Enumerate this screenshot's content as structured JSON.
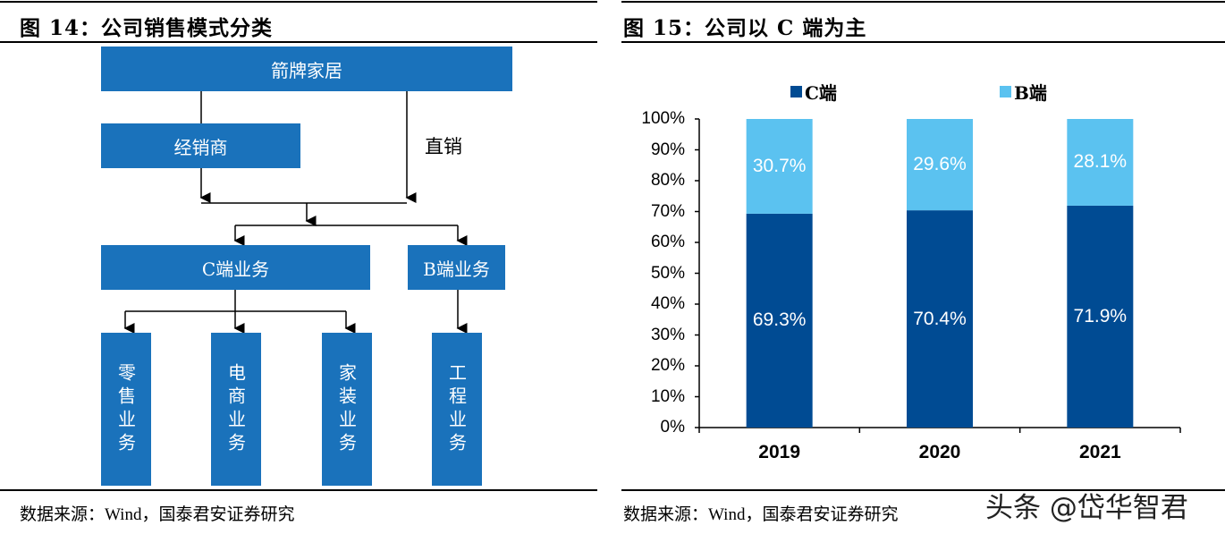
{
  "left": {
    "title": "图 14：公司销售模式分类",
    "source": "数据来源：Wind，国泰君安证券研究",
    "diagram": {
      "root": "箭牌家居",
      "dealer": "经销商",
      "direct": "直销",
      "c_business": "C端业务",
      "b_business": "B端业务",
      "leaves": [
        "零售业务",
        "电商业务",
        "家装业务",
        "工程业务"
      ]
    },
    "box_color": "#1a72bb"
  },
  "right": {
    "title": "图 15：公司以 C 端为主",
    "source": "数据来源：Wind，国泰君安证券研究",
    "watermark": "头条 @岱华智君"
  },
  "chart_data": {
    "type": "bar",
    "stacked": true,
    "categories": [
      "2019",
      "2020",
      "2021"
    ],
    "series": [
      {
        "name": "C端",
        "values": [
          69.3,
          70.4,
          71.9
        ],
        "labels": [
          "69.3%",
          "70.4%",
          "71.9%"
        ],
        "color": "#004b93"
      },
      {
        "name": "B端",
        "values": [
          30.7,
          29.6,
          28.1
        ],
        "labels": [
          "30.7%",
          "29.6%",
          "28.1%"
        ],
        "color": "#5bc2f0"
      }
    ],
    "yticks": [
      "0%",
      "10%",
      "20%",
      "30%",
      "40%",
      "50%",
      "60%",
      "70%",
      "80%",
      "90%",
      "100%"
    ],
    "ylim": [
      0,
      100
    ],
    "legend": "top"
  }
}
